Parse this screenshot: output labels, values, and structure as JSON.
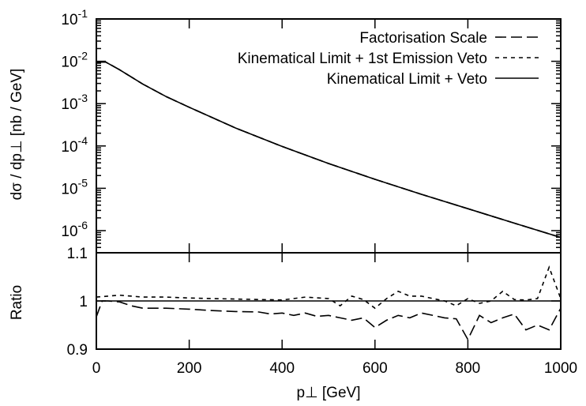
{
  "chart_data": [
    {
      "type": "line",
      "panel": "main",
      "ylabel": "dσ / dp⊥  [nb / GeV]",
      "yscale": "log",
      "ylim": [
        3e-07,
        0.1
      ],
      "xlim": [
        0,
        1000
      ],
      "ytick_labels": [
        {
          "base": "10",
          "exp": "-1",
          "value": 0.1
        },
        {
          "base": "10",
          "exp": "-2",
          "value": 0.01
        },
        {
          "base": "10",
          "exp": "-3",
          "value": 0.001
        },
        {
          "base": "10",
          "exp": "-4",
          "value": 0.0001
        },
        {
          "base": "10",
          "exp": "-5",
          "value": 1e-05
        },
        {
          "base": "10",
          "exp": "-6",
          "value": 1e-06
        }
      ],
      "legend_position": "top-right",
      "series": [
        {
          "name": "Factorisation Scale",
          "dash": "long-dash",
          "x": [
            0,
            20,
            50,
            100,
            150,
            200,
            300,
            400,
            500,
            600,
            700,
            800,
            900,
            1000
          ],
          "y": [
            0.0095,
            0.0096,
            0.0063,
            0.0029,
            0.00147,
            0.00082,
            0.000265,
            9.75e-05,
            3.85e-05,
            1.63e-05,
            7.2e-06,
            3.3e-06,
            1.5e-06,
            6.9e-07
          ]
        },
        {
          "name": "Kinematical Limit + 1st Emission Veto",
          "dash": "short-dash",
          "x": [
            0,
            20,
            50,
            100,
            150,
            200,
            300,
            400,
            500,
            600,
            700,
            800,
            900,
            1000
          ],
          "y": [
            0.0095,
            0.0096,
            0.0063,
            0.0029,
            0.00147,
            0.00082,
            0.000265,
            9.75e-05,
            3.85e-05,
            1.63e-05,
            7.2e-06,
            3.3e-06,
            1.5e-06,
            6.9e-07
          ]
        },
        {
          "name": "Kinematical Limit + Veto",
          "dash": "solid",
          "x": [
            0,
            20,
            50,
            100,
            150,
            200,
            300,
            400,
            500,
            600,
            700,
            800,
            900,
            1000
          ],
          "y": [
            0.0095,
            0.0096,
            0.0063,
            0.0029,
            0.00147,
            0.00082,
            0.000265,
            9.75e-05,
            3.85e-05,
            1.63e-05,
            7.2e-06,
            3.3e-06,
            1.5e-06,
            6.9e-07
          ]
        }
      ]
    },
    {
      "type": "line",
      "panel": "ratio",
      "xlabel": "p⊥  [GeV]",
      "ylabel": "Ratio",
      "xlim": [
        0,
        1000
      ],
      "ylim": [
        0.9,
        1.1
      ],
      "xticks": [
        0,
        200,
        400,
        600,
        800,
        1000
      ],
      "xtick_labels": [
        "0",
        "200",
        "400",
        "600",
        "800",
        "1000"
      ],
      "yticks": [
        0.9,
        1,
        1.1
      ],
      "ytick_labels": [
        "0.9",
        "1",
        "1.1"
      ],
      "series": [
        {
          "name": "Factorisation Scale",
          "dash": "long-dash",
          "x": [
            0,
            12.5,
            25,
            50,
            75,
            100,
            150,
            200,
            250,
            300,
            350,
            375,
            400,
            425,
            450,
            475,
            500,
            525,
            550,
            575,
            600,
            625,
            650,
            675,
            700,
            725,
            750,
            775,
            800,
            825,
            850,
            875,
            900,
            925,
            950,
            975,
            1000
          ],
          "y": [
            0.967,
            1.0,
            1.0,
            0.998,
            0.99,
            0.985,
            0.985,
            0.983,
            0.98,
            0.978,
            0.977,
            0.973,
            0.975,
            0.97,
            0.975,
            0.968,
            0.97,
            0.965,
            0.96,
            0.965,
            0.945,
            0.96,
            0.97,
            0.965,
            0.975,
            0.97,
            0.965,
            0.963,
            0.92,
            0.97,
            0.955,
            0.965,
            0.973,
            0.94,
            0.95,
            0.94,
            0.985
          ]
        },
        {
          "name": "Kinematical Limit + 1st Emission Veto",
          "dash": "short-dash",
          "x": [
            0,
            25,
            50,
            100,
            150,
            200,
            250,
            300,
            350,
            400,
            450,
            500,
            525,
            550,
            575,
            600,
            625,
            650,
            675,
            700,
            725,
            750,
            775,
            800,
            825,
            850,
            875,
            900,
            925,
            950,
            975,
            1000
          ],
          "y": [
            1.008,
            1.01,
            1.012,
            1.008,
            1.008,
            1.006,
            1.005,
            1.004,
            1.003,
            1.002,
            1.008,
            1.005,
            0.99,
            1.01,
            1.003,
            0.985,
            1.005,
            1.02,
            1.01,
            1.01,
            1.005,
            1.0,
            0.99,
            1.005,
            0.995,
            1.0,
            1.02,
            1.003,
            1.002,
            1.005,
            1.07,
            1.005
          ]
        },
        {
          "name": "Kinematical Limit + Veto",
          "dash": "solid",
          "x": [
            0,
            1000
          ],
          "y": [
            1,
            1
          ]
        }
      ]
    }
  ]
}
